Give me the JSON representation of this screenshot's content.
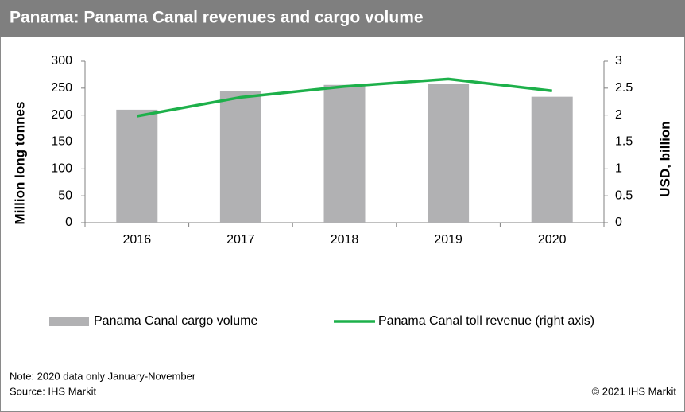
{
  "chart_data": {
    "type": "bar_line",
    "title": "Panama: Panama Canal revenues and cargo volume",
    "categories": [
      "2016",
      "2017",
      "2018",
      "2019",
      "2020"
    ],
    "series": [
      {
        "name": "Panama Canal cargo volume",
        "type": "bar",
        "color": "#b1b1b3",
        "values": [
          210,
          245,
          256,
          258,
          234
        ]
      },
      {
        "name": "Panama Canal toll revenue (right axis)",
        "type": "line",
        "axis": "y2",
        "color": "#1db04a",
        "values": [
          1.98,
          2.33,
          2.53,
          2.67,
          2.45
        ]
      }
    ],
    "ylabel": "Million long tonnes",
    "y2label": "USD, billion",
    "ylim": [
      0,
      300
    ],
    "yticks": [
      0,
      50,
      100,
      150,
      200,
      250,
      300
    ],
    "y2lim": [
      0,
      3
    ],
    "y2ticks": [
      0,
      0.5,
      1,
      1.5,
      2,
      2.5,
      3
    ],
    "grid": false,
    "legend": "bottom",
    "note": "Note: 2020 data only January-November",
    "source": "Source: IHS Markit",
    "copyright": "© 2021 IHS Markit"
  }
}
